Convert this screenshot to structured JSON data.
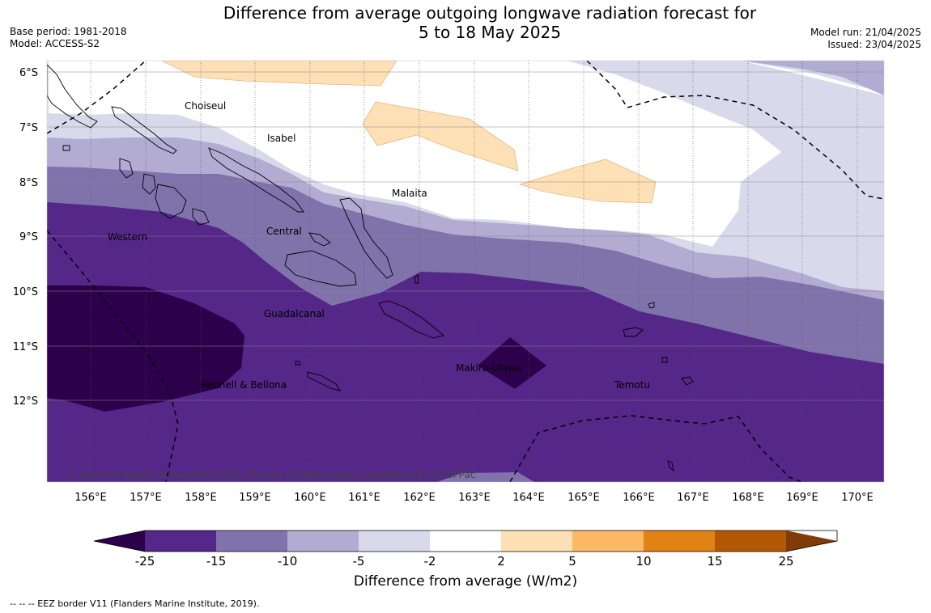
{
  "title": {
    "line1": "Difference from average outgoing longwave radiation forecast for",
    "line2": "5 to 18 May 2025"
  },
  "meta": {
    "base_period": "Base period: 1981-2018",
    "model": "Model: ACCESS-S2",
    "model_run": "Model run: 21/04/2025",
    "issued": "Issued: 23/04/2025"
  },
  "map": {
    "lat_ticks": [
      "6°S",
      "7°S",
      "8°S",
      "9°S",
      "10°S",
      "11°S",
      "12°S"
    ],
    "lon_ticks": [
      "156°E",
      "157°E",
      "158°E",
      "159°E",
      "160°E",
      "161°E",
      "162°E",
      "163°E",
      "164°E",
      "165°E",
      "166°E",
      "167°E",
      "168°E",
      "169°E",
      "170°E"
    ],
    "regions": [
      "Choiseul",
      "Isabel",
      "Malaita",
      "Western",
      "Central",
      "Guadalcanal",
      "Makira-Ulawa",
      "Rennell & Bellona",
      "Temotu"
    ],
    "copyright": "© Commonwealth of Australia 2025, Bureau of Meteorology, supported by COSPPac"
  },
  "colorbar": {
    "title": "Difference from average (W/m2)",
    "labels": [
      "-25",
      "-15",
      "-10",
      "-5",
      "-2",
      "2",
      "5",
      "10",
      "15",
      "25"
    ],
    "colors": [
      "#2d004b",
      "#542788",
      "#8073ac",
      "#b2abd2",
      "#d8daeb",
      "#ffffff",
      "#fee0b6",
      "#fdb863",
      "#e08214",
      "#b35806",
      "#7f3b08"
    ]
  },
  "footnote": "--  --  -- EEZ border V11 (Flanders Marine Institute, 2019)."
}
